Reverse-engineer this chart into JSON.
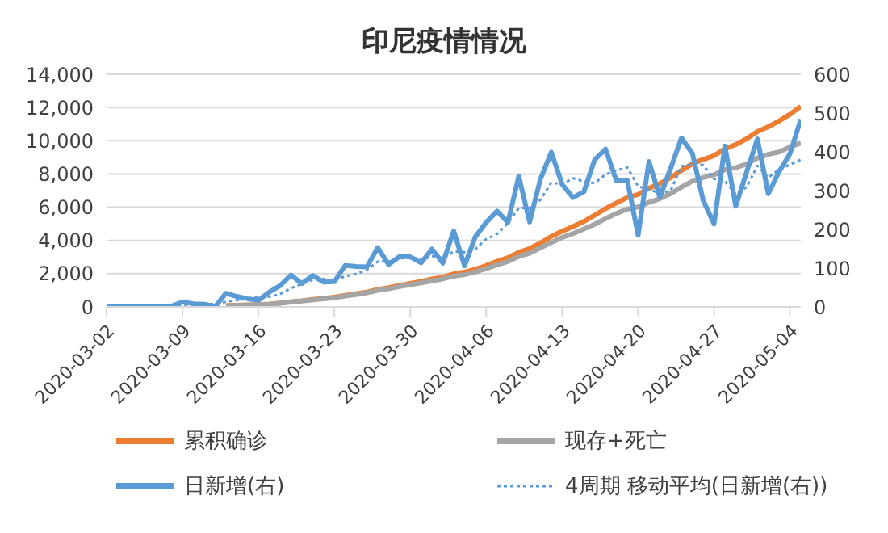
{
  "chart_data": {
    "type": "line",
    "title": "印尼疫情情况",
    "x": [
      "2020-03-02",
      "2020-03-03",
      "2020-03-04",
      "2020-03-05",
      "2020-03-06",
      "2020-03-07",
      "2020-03-08",
      "2020-03-09",
      "2020-03-10",
      "2020-03-11",
      "2020-03-12",
      "2020-03-13",
      "2020-03-14",
      "2020-03-15",
      "2020-03-16",
      "2020-03-17",
      "2020-03-18",
      "2020-03-19",
      "2020-03-20",
      "2020-03-21",
      "2020-03-22",
      "2020-03-23",
      "2020-03-24",
      "2020-03-25",
      "2020-03-26",
      "2020-03-27",
      "2020-03-28",
      "2020-03-29",
      "2020-03-30",
      "2020-03-31",
      "2020-04-01",
      "2020-04-02",
      "2020-04-03",
      "2020-04-04",
      "2020-04-05",
      "2020-04-06",
      "2020-04-07",
      "2020-04-08",
      "2020-04-09",
      "2020-04-10",
      "2020-04-11",
      "2020-04-12",
      "2020-04-13",
      "2020-04-14",
      "2020-04-15",
      "2020-04-16",
      "2020-04-17",
      "2020-04-18",
      "2020-04-19",
      "2020-04-20",
      "2020-04-21",
      "2020-04-22",
      "2020-04-23",
      "2020-04-24",
      "2020-04-25",
      "2020-04-26",
      "2020-04-27",
      "2020-04-28",
      "2020-04-29",
      "2020-04-30",
      "2020-05-01",
      "2020-05-02",
      "2020-05-03",
      "2020-05-04",
      "2020-05-05"
    ],
    "series": [
      {
        "name": "累积确诊",
        "color": "#ed7d31",
        "values": [
          null,
          null,
          null,
          null,
          null,
          null,
          null,
          null,
          null,
          null,
          null,
          70,
          100,
          120,
          130,
          170,
          230,
          310,
          370,
          450,
          510,
          580,
          690,
          790,
          890,
          1050,
          1160,
          1290,
          1410,
          1530,
          1680,
          1790,
          1990,
          2090,
          2270,
          2490,
          2740,
          2960,
          3290,
          3510,
          3840,
          4240,
          4560,
          4840,
          5140,
          5520,
          5920,
          6250,
          6580,
          6760,
          7140,
          7420,
          7780,
          8210,
          8610,
          8880,
          9100,
          9510,
          9770,
          10120,
          10550,
          10840,
          11190,
          11590,
          12070
        ]
      },
      {
        "name": "现存+死亡",
        "color": "#a5a5a5",
        "values": [
          null,
          null,
          null,
          null,
          null,
          null,
          null,
          null,
          null,
          null,
          null,
          60,
          90,
          110,
          130,
          160,
          220,
          290,
          350,
          430,
          490,
          550,
          660,
          740,
          850,
          990,
          1090,
          1220,
          1340,
          1450,
          1570,
          1680,
          1850,
          1940,
          2110,
          2300,
          2530,
          2730,
          3040,
          3230,
          3560,
          3880,
          4180,
          4410,
          4690,
          4970,
          5320,
          5620,
          5890,
          6010,
          6290,
          6510,
          6820,
          7210,
          7570,
          7780,
          7950,
          8260,
          8380,
          8600,
          8960,
          9180,
          9320,
          9630,
          9870
        ]
      },
      {
        "name": "日新增(右)",
        "color": "#5b9bd5",
        "axis": "y2",
        "values": [
          2,
          0,
          0,
          0,
          2,
          0,
          2,
          13,
          8,
          7,
          0,
          35,
          27,
          21,
          17,
          38,
          55,
          82,
          60,
          81,
          64,
          65,
          107,
          104,
          103,
          153,
          109,
          130,
          129,
          114,
          149,
          113,
          196,
          106,
          181,
          218,
          247,
          218,
          337,
          219,
          330,
          399,
          316,
          282,
          297,
          380,
          407,
          325,
          327,
          185,
          375,
          283,
          357,
          436,
          396,
          275,
          214,
          415,
          260,
          347,
          433,
          292,
          349,
          395,
          484
        ]
      },
      {
        "name": "4周期 移动平均(日新增(右))",
        "color": "#5b9bd5",
        "axis": "y2",
        "line_style": "dotted",
        "values": [
          null,
          null,
          null,
          1,
          1,
          1,
          1,
          4,
          6,
          8,
          7,
          13,
          17,
          21,
          25,
          26,
          33,
          48,
          59,
          70,
          72,
          68,
          79,
          85,
          95,
          117,
          117,
          124,
          130,
          121,
          131,
          126,
          143,
          141,
          149,
          175,
          188,
          216,
          255,
          255,
          276,
          321,
          316,
          332,
          324,
          319,
          342,
          352,
          360,
          311,
          303,
          293,
          300,
          363,
          368,
          366,
          330,
          325,
          291,
          309,
          364,
          333,
          355,
          367,
          380
        ]
      }
    ],
    "xlim": [
      "2020-03-02",
      "2020-05-05"
    ],
    "xticks": [
      "2020-03-02",
      "2020-03-09",
      "2020-03-16",
      "2020-03-23",
      "2020-03-30",
      "2020-04-06",
      "2020-04-13",
      "2020-04-20",
      "2020-04-27",
      "2020-05-04"
    ],
    "ylim": [
      0,
      14000
    ],
    "yticks": [
      0,
      {
        "value": 2000,
        "label": "2,000"
      },
      {
        "value": 4000,
        "label": "4,000"
      },
      {
        "value": 6000,
        "label": "6,000"
      },
      {
        "value": 8000,
        "label": "8,000"
      },
      {
        "value": 10000,
        "label": "10,000"
      },
      {
        "value": 12000,
        "label": "12,000"
      },
      {
        "value": 14000,
        "label": "14,000"
      }
    ],
    "y2lim": [
      0,
      600
    ],
    "y2ticks": [
      0,
      100,
      200,
      300,
      400,
      500,
      600
    ],
    "grid": "y",
    "legend": "bottom"
  }
}
